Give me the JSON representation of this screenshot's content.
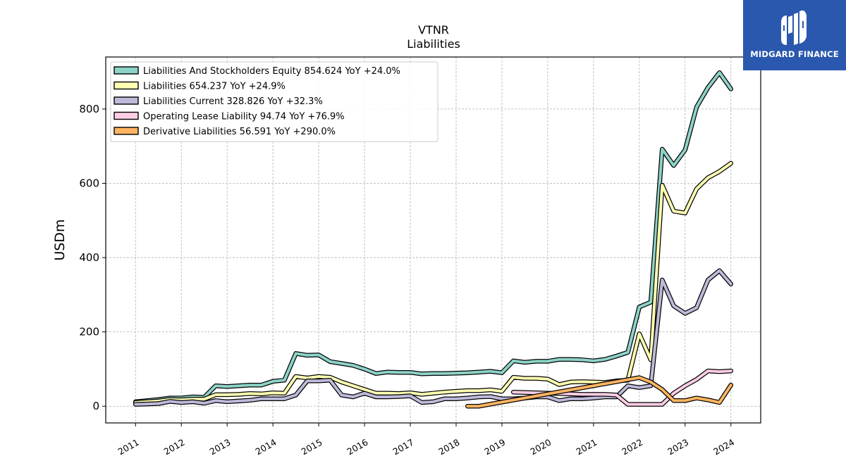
{
  "brand": {
    "name": "MIDGARD FINANCE",
    "bg_color": "#2a58ae"
  },
  "chart_data": {
    "type": "line",
    "title": "VTNR",
    "subtitle": "Liabilities",
    "xlabel": "",
    "ylabel": "USDm",
    "xlim": [
      2010.35,
      2024.65
    ],
    "ylim": [
      -45,
      940
    ],
    "x_ticks": [
      2011,
      2012,
      2013,
      2014,
      2015,
      2016,
      2017,
      2018,
      2019,
      2020,
      2021,
      2022,
      2023,
      2024
    ],
    "x_tick_labels": [
      "2011",
      "2012",
      "2013",
      "2014",
      "2015",
      "2016",
      "2017",
      "2018",
      "2019",
      "2020",
      "2021",
      "2022",
      "2023",
      "2024"
    ],
    "y_ticks": [
      0,
      200,
      400,
      600,
      800
    ],
    "y_tick_labels": [
      "0",
      "200",
      "400",
      "600",
      "800"
    ],
    "grid": true,
    "legend_position": "top-left",
    "series": [
      {
        "name": "Liabilities And Stockholders Equity  854.624 YoY +24.0%",
        "color": "#8dd3c7",
        "x": [
          2011.0,
          2011.25,
          2011.5,
          2011.75,
          2012.0,
          2012.25,
          2012.5,
          2012.75,
          2013.0,
          2013.25,
          2013.5,
          2013.75,
          2014.0,
          2014.25,
          2014.5,
          2014.75,
          2015.0,
          2015.25,
          2015.5,
          2015.75,
          2016.0,
          2016.25,
          2016.5,
          2016.75,
          2017.0,
          2017.25,
          2017.5,
          2017.75,
          2018.0,
          2018.25,
          2018.5,
          2018.75,
          2019.0,
          2019.25,
          2019.5,
          2019.75,
          2020.0,
          2020.25,
          2020.5,
          2020.75,
          2021.0,
          2021.25,
          2021.5,
          2021.75,
          2022.0,
          2022.25,
          2022.5,
          2022.75,
          2023.0,
          2023.25,
          2023.5,
          2023.75,
          2024.0
        ],
        "y": [
          12,
          15,
          18,
          22,
          22,
          25,
          24,
          55,
          53,
          55,
          57,
          57,
          67,
          70,
          142,
          137,
          138,
          120,
          115,
          110,
          100,
          88,
          92,
          91,
          91,
          87,
          88,
          88,
          89,
          90,
          92,
          94,
          90,
          122,
          118,
          121,
          121,
          126,
          126,
          125,
          122,
          126,
          135,
          145,
          267,
          280,
          692,
          648,
          690,
          805,
          858,
          898,
          854
        ]
      },
      {
        "name": "Liabilities  654.237 YoY +24.9%",
        "color": "#ffffb3",
        "x": [
          2011.0,
          2011.25,
          2011.5,
          2011.75,
          2012.0,
          2012.25,
          2012.5,
          2012.75,
          2013.0,
          2013.25,
          2013.5,
          2013.75,
          2014.0,
          2014.25,
          2014.5,
          2014.75,
          2015.0,
          2015.25,
          2015.5,
          2015.75,
          2016.0,
          2016.25,
          2016.5,
          2016.75,
          2017.0,
          2017.25,
          2017.5,
          2017.75,
          2018.0,
          2018.25,
          2018.5,
          2018.75,
          2019.0,
          2019.25,
          2019.5,
          2019.75,
          2020.0,
          2020.25,
          2020.5,
          2020.75,
          2021.0,
          2021.25,
          2021.5,
          2021.75,
          2022.0,
          2022.25,
          2022.5,
          2022.75,
          2023.0,
          2023.25,
          2023.5,
          2023.75,
          2024.0
        ],
        "y": [
          10,
          12,
          14,
          18,
          17,
          19,
          19,
          31,
          31,
          32,
          34,
          33,
          36,
          35,
          80,
          76,
          80,
          78,
          65,
          55,
          45,
          35,
          35,
          34,
          36,
          32,
          35,
          38,
          40,
          42,
          42,
          44,
          40,
          78,
          75,
          75,
          73,
          58,
          65,
          66,
          65,
          64,
          68,
          70,
          195,
          125,
          595,
          525,
          520,
          585,
          615,
          632,
          654
        ]
      },
      {
        "name": "Liabilities Current  328.826 YoY +32.3%",
        "color": "#bebada",
        "x": [
          2011.0,
          2011.25,
          2011.5,
          2011.75,
          2012.0,
          2012.25,
          2012.5,
          2012.75,
          2013.0,
          2013.25,
          2013.5,
          2013.75,
          2014.0,
          2014.25,
          2014.5,
          2014.75,
          2015.0,
          2015.25,
          2015.5,
          2015.75,
          2016.0,
          2016.25,
          2016.5,
          2016.75,
          2017.0,
          2017.25,
          2017.5,
          2017.75,
          2018.0,
          2018.25,
          2018.5,
          2018.75,
          2019.0,
          2019.25,
          2019.5,
          2019.75,
          2020.0,
          2020.25,
          2020.5,
          2020.75,
          2021.0,
          2021.25,
          2021.5,
          2021.75,
          2022.0,
          2022.25,
          2022.5,
          2022.75,
          2023.0,
          2023.25,
          2023.5,
          2023.75,
          2024.0
        ],
        "y": [
          5,
          6,
          7,
          13,
          10,
          12,
          8,
          15,
          12,
          14,
          16,
          20,
          20,
          20,
          30,
          68,
          68,
          70,
          30,
          25,
          35,
          25,
          25,
          26,
          28,
          10,
          12,
          20,
          20,
          22,
          25,
          26,
          20,
          20,
          22,
          25,
          25,
          15,
          20,
          20,
          22,
          25,
          25,
          55,
          50,
          55,
          340,
          270,
          250,
          265,
          340,
          365,
          329
        ]
      },
      {
        "name": "Operating Lease Liability  94.74 YoY +76.9%",
        "color": "#fccde5",
        "x": [
          2019.25,
          2019.5,
          2019.75,
          2020.0,
          2020.25,
          2020.5,
          2020.75,
          2021.0,
          2021.25,
          2021.5,
          2021.75,
          2022.0,
          2022.25,
          2022.5,
          2022.75,
          2023.0,
          2023.25,
          2023.5,
          2023.75,
          2024.0
        ],
        "y": [
          38,
          37,
          36,
          35,
          34,
          33,
          32,
          32,
          32,
          30,
          5,
          5,
          5,
          5,
          35,
          55,
          72,
          95,
          93,
          95
        ]
      },
      {
        "name": "Derivative Liabilities  56.591 YoY +290.0%",
        "color": "#fdb462",
        "x": [
          2018.25,
          2018.5,
          2022.0,
          2022.25,
          2022.5,
          2022.75,
          2023.0,
          2023.25,
          2023.5,
          2023.75,
          2024.0
        ],
        "y": [
          0,
          0,
          77,
          65,
          45,
          15,
          15,
          22,
          17,
          10,
          57
        ]
      }
    ]
  }
}
